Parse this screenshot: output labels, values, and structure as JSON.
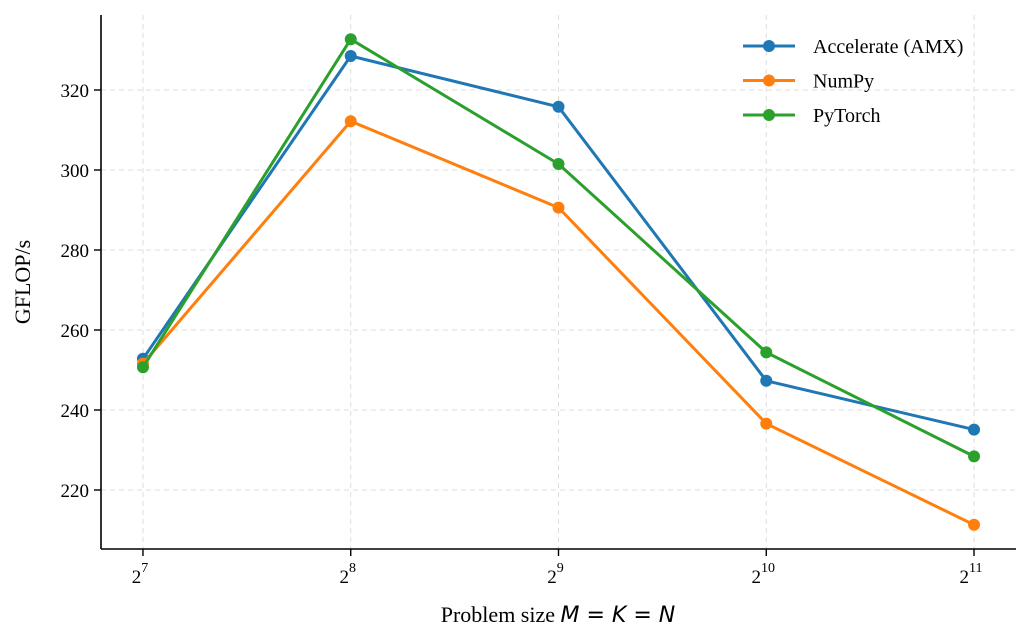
{
  "chart_data": {
    "type": "line",
    "title": "",
    "xlabel": "Problem size",
    "xlabel_math": "M = K = N",
    "ylabel": "GFLOP/s",
    "xscale": "log2",
    "x": [
      128,
      256,
      512,
      1024,
      2048
    ],
    "x_tick_labels": [
      {
        "base": "2",
        "exp": "7"
      },
      {
        "base": "2",
        "exp": "8"
      },
      {
        "base": "2",
        "exp": "9"
      },
      {
        "base": "2",
        "exp": "10"
      },
      {
        "base": "2",
        "exp": "11"
      }
    ],
    "y_ticks": [
      220,
      240,
      260,
      280,
      300,
      320
    ],
    "ylim": [
      205.25,
      338.75
    ],
    "xlim_log2": [
      6.798,
      11.202
    ],
    "grid": true,
    "legend_position": "top-right",
    "series": [
      {
        "name": "Accelerate (AMX)",
        "color": "#1f77b4",
        "values": [
          252.8,
          328.5,
          315.8,
          247.3,
          235.1
        ]
      },
      {
        "name": "NumPy",
        "color": "#ff7f0e",
        "values": [
          251.6,
          312.2,
          290.6,
          236.6,
          211.3
        ]
      },
      {
        "name": "PyTorch",
        "color": "#2ca02c",
        "values": [
          250.7,
          332.7,
          301.5,
          254.4,
          228.4
        ]
      }
    ]
  }
}
